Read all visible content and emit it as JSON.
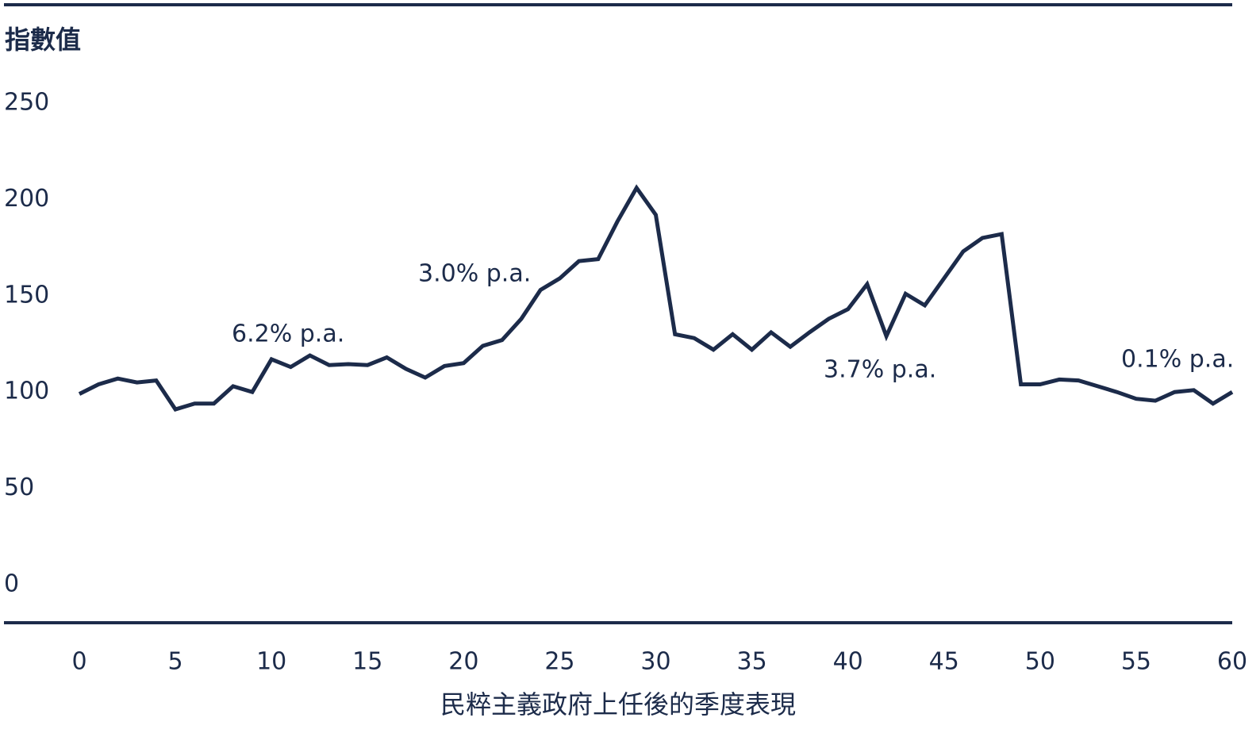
{
  "chart_data": {
    "type": "line",
    "y_label": "指數值",
    "x_label": "民粹主義政府上任後的季度表現",
    "x": [
      0,
      1,
      2,
      3,
      4,
      5,
      6,
      7,
      8,
      9,
      10,
      11,
      12,
      13,
      14,
      15,
      16,
      17,
      18,
      19,
      20,
      21,
      22,
      23,
      24,
      25,
      26,
      27,
      28,
      29,
      30,
      31,
      32,
      33,
      34,
      35,
      36,
      37,
      38,
      39,
      40,
      41,
      42,
      43,
      44,
      45,
      46,
      47,
      48,
      49,
      50,
      51,
      52,
      53,
      54,
      55,
      56,
      57,
      58,
      59,
      60
    ],
    "series": [
      {
        "color": "#1c2b4a",
        "values": [
          99,
          104,
          107,
          105,
          106,
          91,
          94,
          94,
          103,
          100,
          117,
          113,
          119,
          114,
          114.5,
          114,
          118,
          112,
          107.5,
          113.5,
          115,
          124,
          127,
          138,
          153,
          159,
          168,
          169,
          188.5,
          206,
          192,
          130,
          128,
          122,
          130,
          122,
          131,
          123.5,
          131,
          138,
          143,
          156,
          129,
          151,
          145,
          159,
          173,
          180,
          182,
          104,
          104,
          106.5,
          106,
          103,
          100,
          96.5,
          95.5,
          100,
          101,
          94,
          100
        ]
      }
    ],
    "xlim": [
      0,
      60
    ],
    "xticks": [
      0,
      5,
      10,
      15,
      20,
      25,
      30,
      35,
      40,
      45,
      50,
      55,
      60
    ],
    "ylim": [
      0,
      250
    ],
    "yticks": [
      0,
      50,
      100,
      150,
      200,
      250
    ],
    "annotations": [
      "6.2% p.a.",
      "3.0% p.a.",
      "3.7% p.a.",
      "0.1% p.a."
    ]
  }
}
